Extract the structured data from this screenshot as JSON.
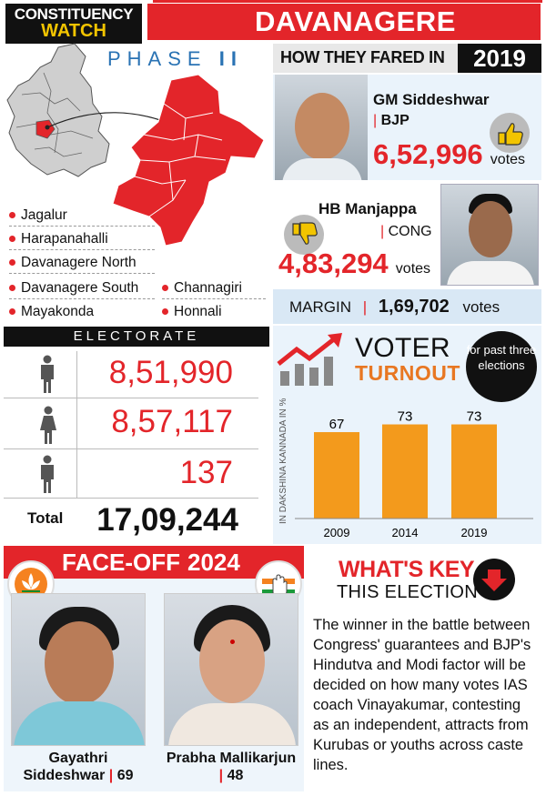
{
  "header": {
    "constituency_line1": "CONSTITUENCY",
    "constituency_line2": "WATCH",
    "title": "DAVANAGERE"
  },
  "map": {
    "phase_label": "PHASE",
    "phase_num": "II",
    "segments_left": [
      "Jagalur",
      "Harapanahalli",
      "Davanagere North",
      "Davanagere South",
      "Mayakonda"
    ],
    "segments_right": [
      "Channagiri",
      "Honnali"
    ]
  },
  "fared": {
    "label": "HOW THEY FARED IN",
    "year": "2019",
    "winner": {
      "name": "GM Siddeshwar",
      "party": "BJP",
      "votes": "6,52,996",
      "votes_label": "votes"
    },
    "runner": {
      "name": "HB Manjappa",
      "party": "CONG",
      "votes": "4,83,294",
      "votes_label": "votes"
    },
    "margin_label": "MARGIN",
    "margin_value": "1,69,702",
    "margin_unit": "votes"
  },
  "electorate": {
    "title": "ELECTORATE",
    "male": "8,51,990",
    "female": "8,57,117",
    "others": "137",
    "total_label": "Total",
    "total": "17,09,244"
  },
  "turnout": {
    "title1": "VOTER",
    "title2": "TURNOUT",
    "badge": "for past three elections",
    "ylabel": "IN DAKSHINA KANNADA IN %"
  },
  "chart_data": {
    "type": "bar",
    "categories": [
      "2009",
      "2014",
      "2019"
    ],
    "values": [
      67,
      73,
      73
    ],
    "title": "VOTER TURNOUT",
    "ylabel": "IN DAKSHINA KANNADA IN %",
    "ylim": [
      0,
      80
    ],
    "colors": [
      "#f39a1c"
    ]
  },
  "faceoff": {
    "title": "FACE-OFF",
    "year": "2024",
    "c1": {
      "name1": "Gayathri",
      "name2": "Siddeshwar",
      "age": "69"
    },
    "c2": {
      "name1": "Prabha Mallikarjun",
      "age": "48"
    }
  },
  "key": {
    "title1": "WHAT'S KEY",
    "title2": "THIS ELECTION",
    "text": "The winner in the battle between Congress' guarantees and BJP's Hindutva and Modi factor will be decided on how many votes IAS coach Vinayakumar, contesting as an independent, attracts from Kurubas or youths across caste lines."
  },
  "colors": {
    "accent": "#e3252a",
    "turnout": "#e87722",
    "bar": "#f39a1c",
    "phase": "#2a73b4"
  }
}
